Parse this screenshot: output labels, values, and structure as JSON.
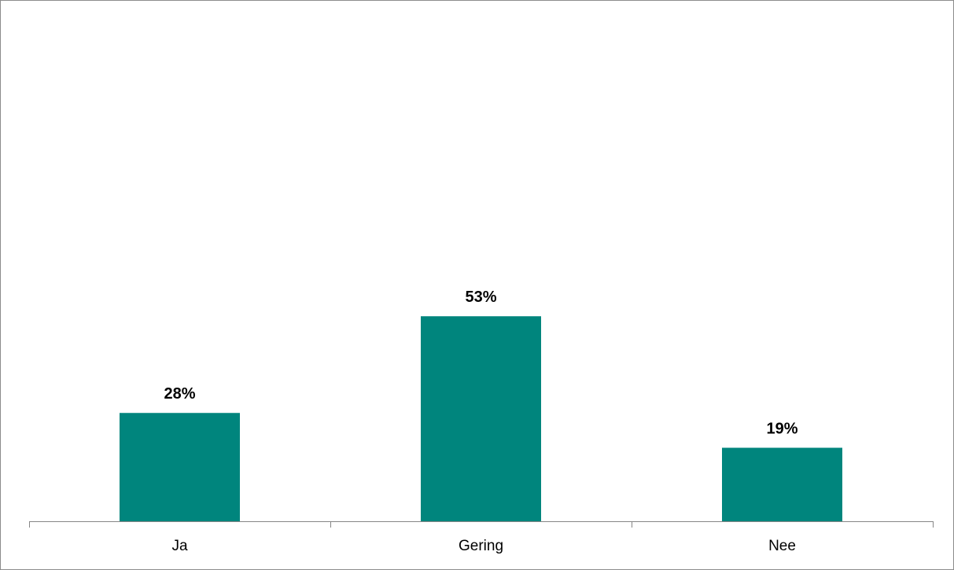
{
  "chart_data": {
    "type": "bar",
    "categories": [
      "Ja",
      "Gering",
      "Nee"
    ],
    "values": [
      28,
      53,
      19
    ],
    "data_labels": [
      "28%",
      "53%",
      "19%"
    ],
    "title": "",
    "xlabel": "",
    "ylabel": "",
    "ylim": [
      0,
      60
    ],
    "grid": false,
    "legend": "none",
    "bar_color": "#00857D",
    "axis_color": "#868686"
  }
}
